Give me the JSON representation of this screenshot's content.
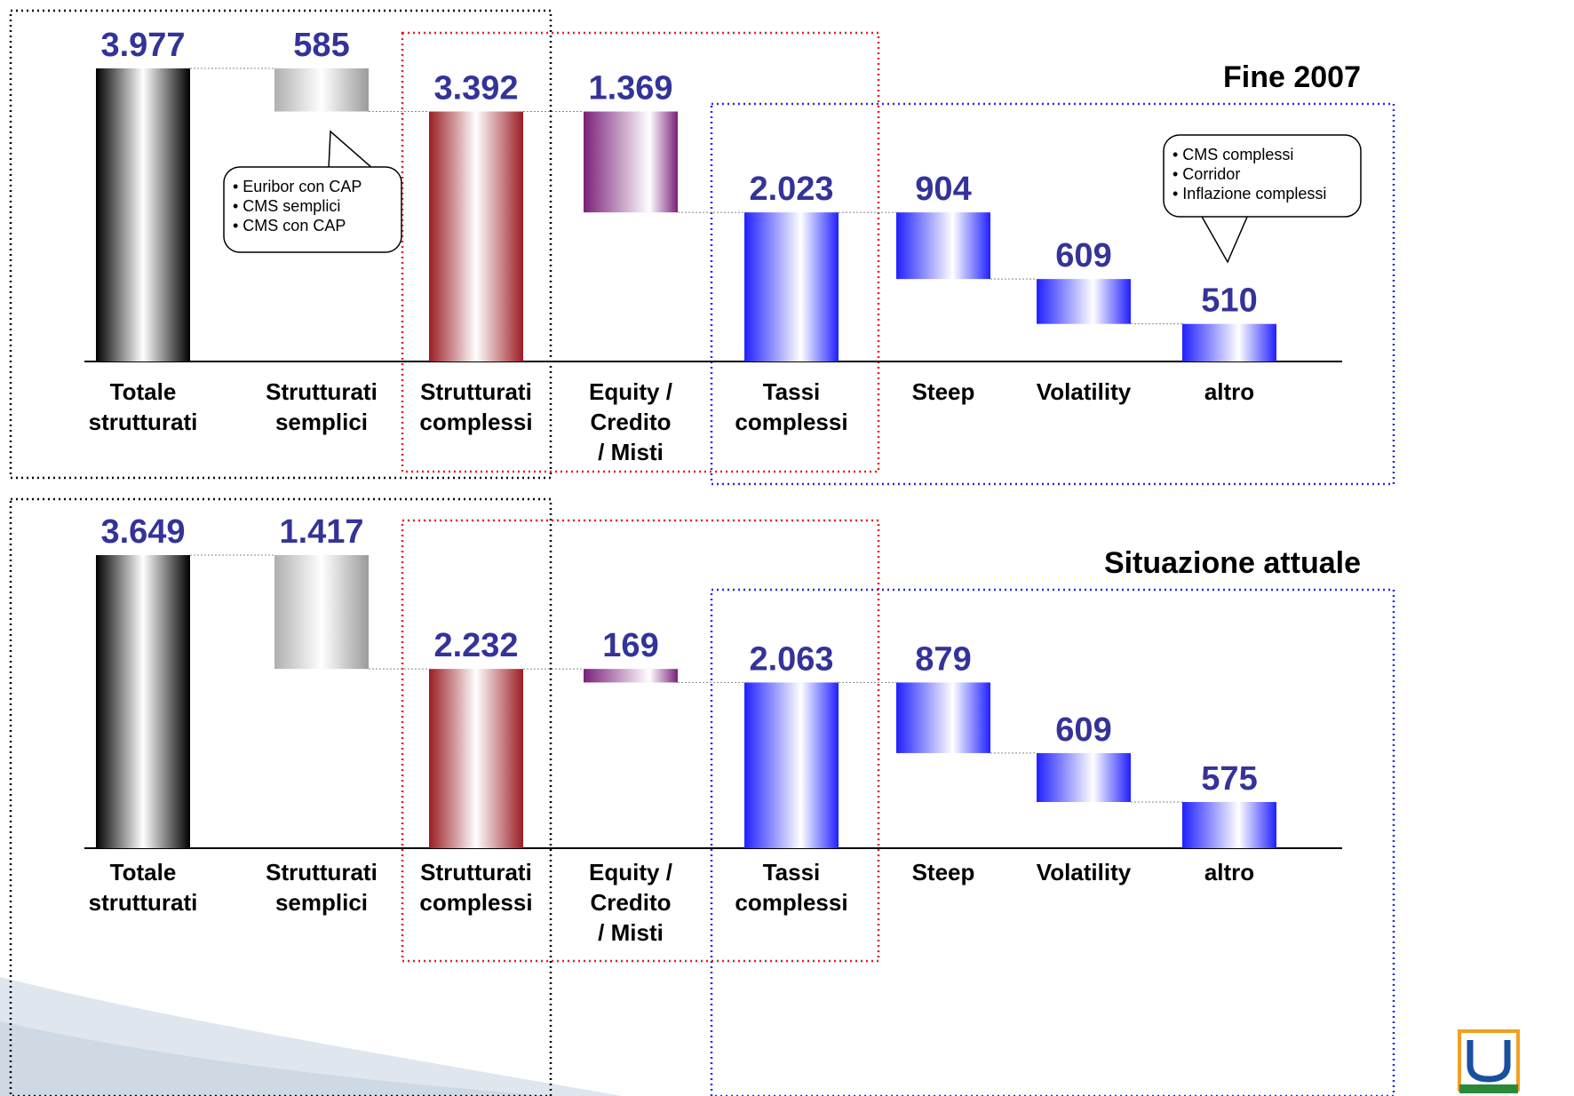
{
  "colors": {
    "value_text": "#333399",
    "label_text": "#000000",
    "black_box": "#000000",
    "red_box": "#e02020",
    "blue_box": "#2b2be0"
  },
  "categories": [
    "Totale strutturati",
    "Strutturati semplici",
    "Strutturati complessi",
    "Equity / Credito / Misti",
    "Tassi complessi",
    "Steep",
    "Volatility",
    "altro"
  ],
  "category_lines": [
    [
      "Totale",
      "strutturati"
    ],
    [
      "Strutturati",
      "semplici"
    ],
    [
      "Strutturati",
      "complessi"
    ],
    [
      "Equity /",
      "Credito",
      "/ Misti"
    ],
    [
      "Tassi",
      "complessi"
    ],
    [
      "Steep"
    ],
    [
      "Volatility"
    ],
    [
      "altro"
    ]
  ],
  "callouts": {
    "top_left": [
      "• Euribor con CAP",
      "• CMS semplici",
      "• CMS con CAP"
    ],
    "top_right": [
      "• CMS complessi",
      "• Corridor",
      "• Inflazione complessi"
    ]
  },
  "chart_data": [
    {
      "type": "bar",
      "subtype": "waterfall",
      "title": "Fine 2007",
      "categories": [
        "Totale strutturati",
        "Strutturati semplici",
        "Strutturati complessi",
        "Equity / Credito / Misti",
        "Tassi complessi",
        "Steep",
        "Volatility",
        "altro"
      ],
      "values": [
        3977,
        585,
        3392,
        1369,
        2023,
        904,
        609,
        510
      ],
      "value_labels": [
        "3.977",
        "585",
        "3.392",
        "1.369",
        "2.023",
        "904",
        "609",
        "510"
      ],
      "bar_kinds": [
        "total",
        "step",
        "total",
        "step",
        "total",
        "step",
        "step",
        "step"
      ],
      "bar_styles": [
        "dark",
        "gray",
        "red",
        "purple",
        "blue",
        "blue",
        "blue",
        "blue"
      ],
      "ylim": [
        0,
        3977
      ]
    },
    {
      "type": "bar",
      "subtype": "waterfall",
      "title": "Situazione attuale",
      "categories": [
        "Totale strutturati",
        "Strutturati semplici",
        "Strutturati complessi",
        "Equity / Credito / Misti",
        "Tassi complessi",
        "Steep",
        "Volatility",
        "altro"
      ],
      "values": [
        3649,
        1417,
        2232,
        169,
        2063,
        879,
        609,
        575
      ],
      "value_labels": [
        "3.649",
        "1.417",
        "2.232",
        "169",
        "2.063",
        "879",
        "609",
        "575"
      ],
      "bar_kinds": [
        "total",
        "step",
        "total",
        "step",
        "total",
        "step",
        "step",
        "step"
      ],
      "bar_styles": [
        "dark",
        "gray",
        "red",
        "purple",
        "blue",
        "blue",
        "blue",
        "blue"
      ],
      "ylim": [
        0,
        3649
      ]
    }
  ]
}
